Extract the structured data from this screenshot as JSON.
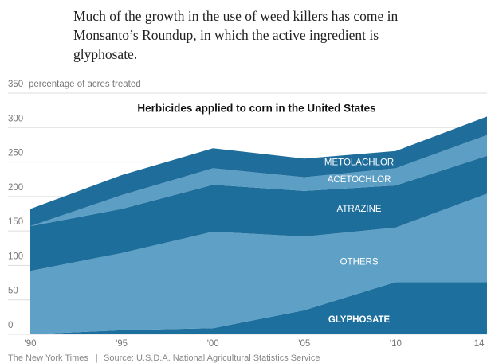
{
  "intro": "Much of the growth in the use of weed killers has come in Monsanto’s Roundup, in which the active ingredient is glyphosate.",
  "chart_data": {
    "type": "stacked-area",
    "title": "Herbicides applied to corn in the United States",
    "y_label": "percentage of acres treated",
    "categories": [
      "'90",
      "'95",
      "'00",
      "'05",
      "'10",
      "'14"
    ],
    "series": [
      {
        "name": "GLYPHOSATE",
        "color": "#1d6f9e",
        "values": [
          0,
          6,
          9,
          35,
          76,
          76
        ]
      },
      {
        "name": "OTHERS",
        "color": "#5fa0c6",
        "values": [
          92,
          112,
          140,
          107,
          79,
          128
        ]
      },
      {
        "name": "ATRAZINE",
        "color": "#1e6e9c",
        "values": [
          65,
          64,
          68,
          66,
          61,
          55
        ]
      },
      {
        "name": "ACETOCHLOR",
        "color": "#5d9ec5",
        "values": [
          0,
          20,
          24,
          20,
          25,
          30
        ]
      },
      {
        "name": "METOLACHLOR",
        "color": "#1f6d9b",
        "values": [
          25,
          29,
          29,
          27,
          25,
          27
        ]
      }
    ],
    "ylim": [
      0,
      350
    ],
    "yticks": [
      0,
      50,
      100,
      150,
      200,
      250,
      300,
      350
    ],
    "grid": true
  },
  "credit": "The New York Times",
  "source": "Source: U.S.D.A. National Agricultural Statistics Service"
}
